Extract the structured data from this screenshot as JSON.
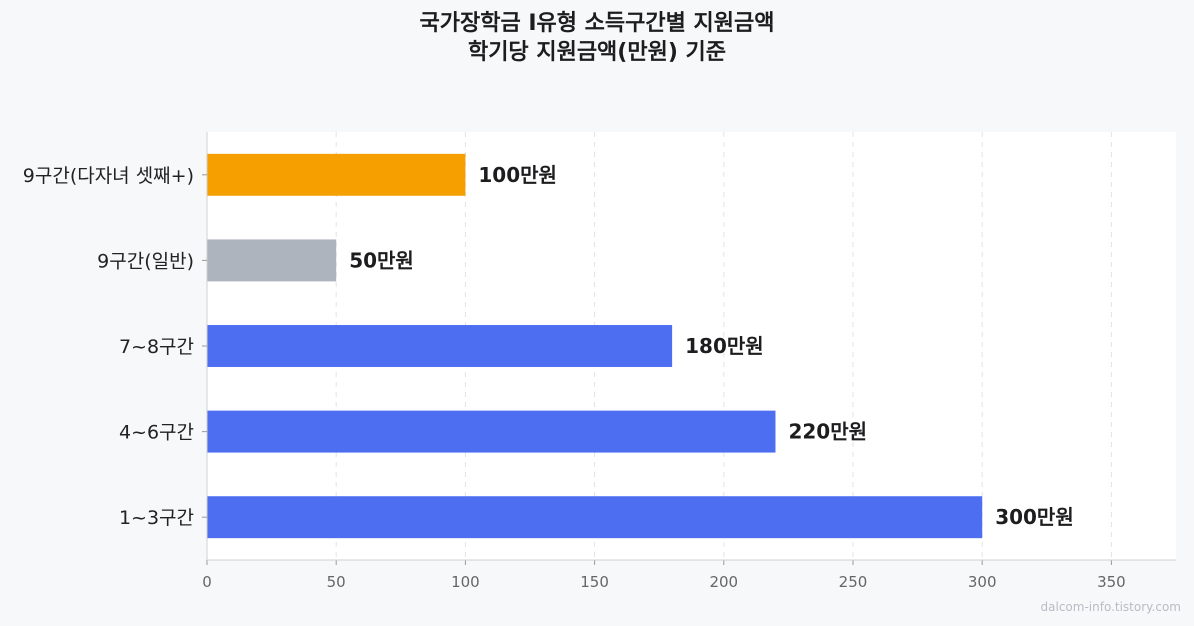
{
  "chart_data": {
    "type": "bar",
    "orientation": "horizontal",
    "title": [
      "국가장학금 Ⅰ유형 소득구간별 지원금액",
      "학기당 지원금액(만원) 기준"
    ],
    "categories": [
      "9구간(다자녀 셋째+)",
      "9구간(일반)",
      "7~8구간",
      "4~6구간",
      "1~3구간"
    ],
    "values": [
      100,
      50,
      180,
      220,
      300
    ],
    "value_labels": [
      "100만원",
      "50만원",
      "180만원",
      "220만원",
      "300만원"
    ],
    "bar_colors": [
      "#f5a000",
      "#adb4bd",
      "#4e6ef2",
      "#4e6ef2",
      "#4e6ef2"
    ],
    "xlim": [
      0,
      375
    ],
    "xticks": [
      0,
      50,
      100,
      150,
      200,
      250,
      300,
      350
    ],
    "xgrid": true,
    "plot_background": "#ffffff",
    "page_background": "#f7f8fa"
  },
  "watermark": "dalcom-info.tistory.com"
}
